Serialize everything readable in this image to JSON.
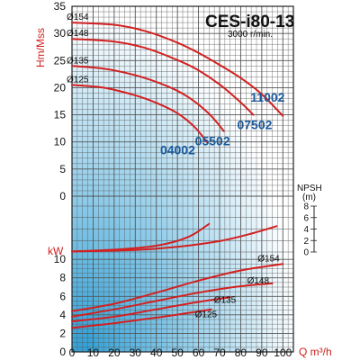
{
  "chart_data": {
    "type": "line",
    "title": "CES-i80-13",
    "subtitle": "3000 r/min.",
    "xlabel": "Q m³/h",
    "x_ticks": [
      0,
      10,
      20,
      30,
      40,
      50,
      60,
      70,
      80,
      90,
      100
    ],
    "xlim": [
      0,
      105
    ],
    "colors": {
      "curve": "#d32020",
      "grid": "#555555",
      "gradient_light": "#ffffff",
      "gradient_dark": "#2f9fd6",
      "model_label": "#1a5a9c",
      "axis_label": "#d02020"
    },
    "head_panel": {
      "ylabel": "Hm/Mss",
      "y_ticks": [
        0,
        5,
        10,
        15,
        20,
        25,
        30,
        35
      ],
      "ylim": [
        0,
        35
      ],
      "impeller_labels": [
        "Ø154",
        "Ø148",
        "Ø135",
        "Ø125"
      ],
      "model_labels": [
        "11002",
        "07502",
        "05502",
        "04002"
      ],
      "series": [
        {
          "name": "11002",
          "impeller": "Ø154",
          "x": [
            0,
            20,
            35,
            50,
            60,
            70,
            80,
            90,
            100
          ],
          "y": [
            32,
            31.6,
            30.4,
            28.3,
            26.4,
            24.2,
            21.8,
            18.8,
            14.8
          ]
        },
        {
          "name": "07502",
          "impeller": "Ø148",
          "x": [
            0,
            20,
            35,
            50,
            60,
            70,
            80,
            86
          ],
          "y": [
            29,
            28.5,
            27.3,
            25.1,
            23.2,
            20.6,
            17.3,
            15
          ]
        },
        {
          "name": "05502",
          "impeller": "Ø135",
          "x": [
            0,
            15,
            30,
            45,
            55,
            65,
            72
          ],
          "y": [
            24,
            23.5,
            22.3,
            20.3,
            18.3,
            15.2,
            12
          ]
        },
        {
          "name": "04002",
          "impeller": "Ø125",
          "x": [
            0,
            15,
            30,
            40,
            50,
            58,
            64
          ],
          "y": [
            20.5,
            20,
            18.6,
            17.2,
            15.3,
            12.8,
            10
          ]
        }
      ]
    },
    "npsh_panel": {
      "ylabel": "NPSH",
      "unit": "(m)",
      "y_ticks": [
        0,
        2,
        4,
        6,
        8
      ],
      "ylim": [
        0,
        8
      ],
      "series": [
        {
          "x": [
            0,
            20,
            40,
            55,
            65
          ],
          "y": [
            0.1,
            0.4,
            1.1,
            2.6,
            4.9
          ]
        },
        {
          "x": [
            0,
            30,
            50,
            70,
            85,
            97
          ],
          "y": [
            0.1,
            0.35,
            0.9,
            1.9,
            3.2,
            4.5
          ]
        }
      ]
    },
    "power_panel": {
      "ylabel": "kW",
      "y_ticks": [
        0,
        2,
        4,
        6,
        8,
        10
      ],
      "ylim": [
        0,
        10.5
      ],
      "impeller_labels": [
        "Ø154",
        "Ø148",
        "Ø135",
        "Ø125"
      ],
      "series": [
        {
          "impeller": "Ø154",
          "x": [
            0,
            20,
            40,
            60,
            80,
            100
          ],
          "y": [
            4.4,
            5.2,
            6.4,
            7.7,
            8.8,
            9.5
          ]
        },
        {
          "impeller": "Ø148",
          "x": [
            0,
            20,
            40,
            60,
            80,
            95
          ],
          "y": [
            3.8,
            4.6,
            5.5,
            6.4,
            7.1,
            7.4
          ]
        },
        {
          "impeller": "Ø135",
          "x": [
            0,
            20,
            40,
            60,
            75
          ],
          "y": [
            3.3,
            3.8,
            4.6,
            5.4,
            5.9
          ]
        },
        {
          "impeller": "Ø125",
          "x": [
            0,
            20,
            40,
            55,
            66
          ],
          "y": [
            2.6,
            3.1,
            3.7,
            4.2,
            4.6
          ]
        }
      ]
    }
  }
}
